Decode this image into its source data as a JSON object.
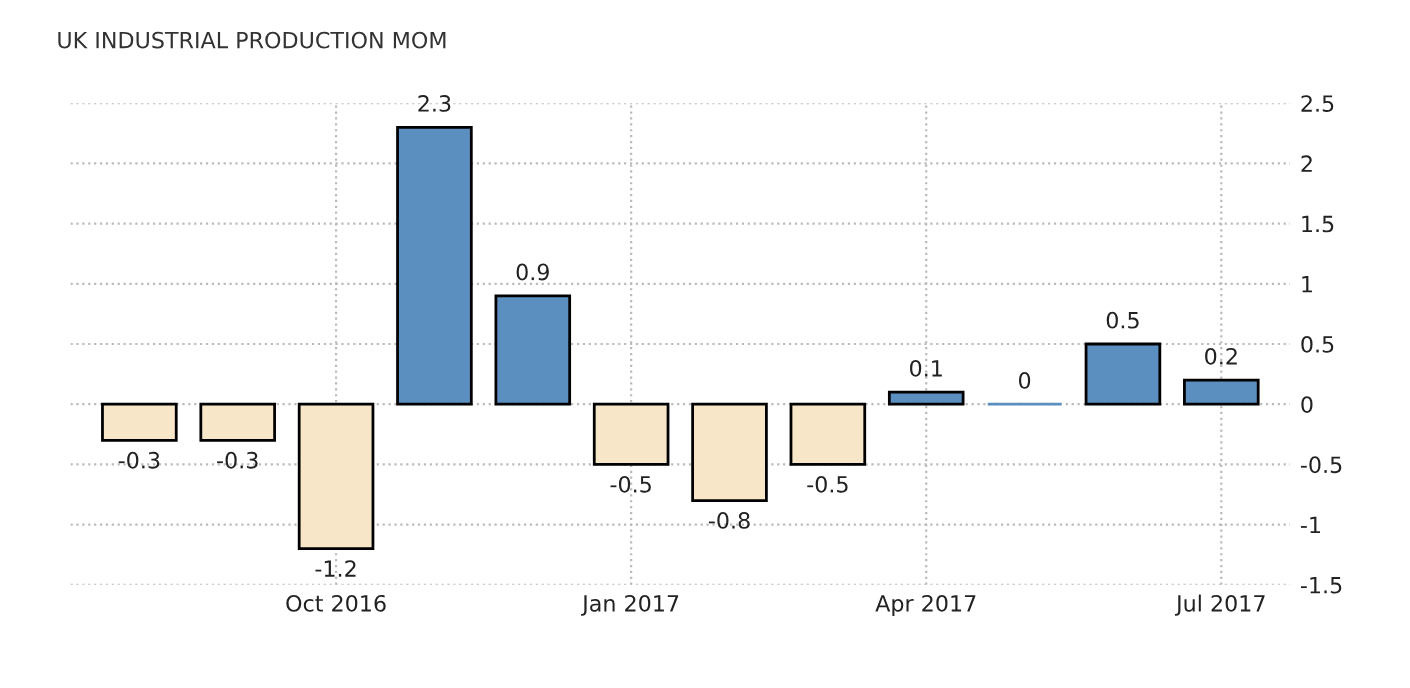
{
  "chart_data": {
    "type": "bar",
    "title": "UK INDUSTRIAL PRODUCTION MOM",
    "categories": [
      null,
      null,
      "Oct 2016",
      null,
      null,
      "Jan 2017",
      null,
      null,
      "Apr 2017",
      null,
      null,
      "Jul 2017"
    ],
    "values": [
      -0.3,
      -0.3,
      -1.2,
      2.3,
      0.9,
      -0.5,
      -0.8,
      -0.5,
      0.1,
      0,
      0.5,
      0.2
    ],
    "colors": [
      "#f7e6c8",
      "#f7e6c8",
      "#f7e6c8",
      "#5b8fc0",
      "#5b8fc0",
      "#f7e6c8",
      "#f7e6c8",
      "#f7e6c8",
      "#5b8fc0",
      "#5b8fc0",
      "#5b8fc0",
      "#5b8fc0"
    ],
    "ylim": [
      -1.5,
      2.5
    ],
    "yticks": [
      -1.5,
      -1,
      -0.5,
      0,
      0.5,
      1,
      1.5,
      2,
      2.5
    ],
    "grid": true,
    "data_labels": true
  }
}
